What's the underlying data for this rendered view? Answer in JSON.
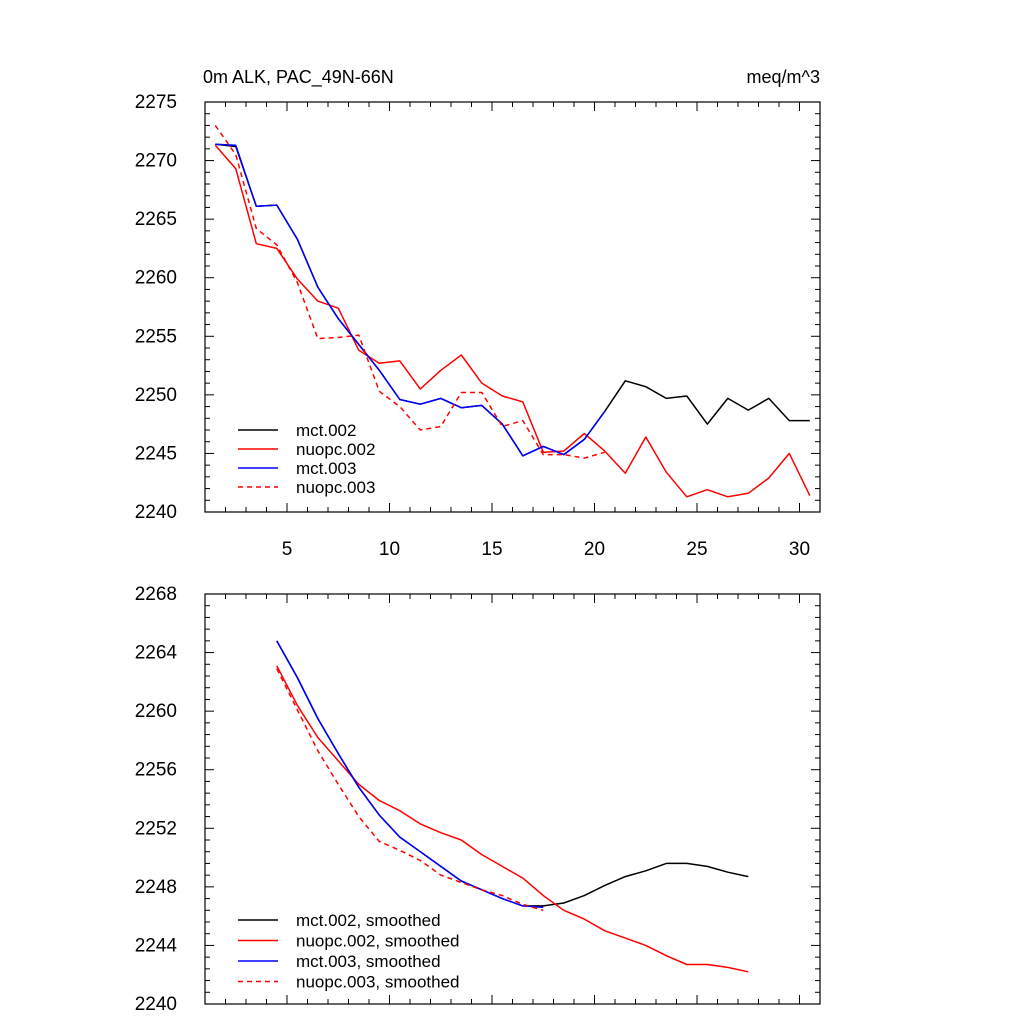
{
  "colors": {
    "black": "#000000",
    "red": "#ff0000",
    "blue": "#0000ff",
    "background": "#ffffff"
  },
  "chart_data": [
    {
      "type": "line",
      "title": "0m ALK, PAC_49N-66N",
      "units": "meq/m^3",
      "xlim": [
        1,
        31
      ],
      "ylim": [
        2240,
        2275
      ],
      "xticks": [
        5,
        10,
        15,
        20,
        25,
        30
      ],
      "xtick_labels": [
        "5",
        "10",
        "15",
        "20",
        "25",
        "30"
      ],
      "yticks": [
        2240,
        2245,
        2250,
        2255,
        2260,
        2265,
        2270,
        2275
      ],
      "ytick_labels": [
        "2240",
        "2245",
        "2250",
        "2255",
        "2260",
        "2265",
        "2270",
        "2275"
      ],
      "legend_position": "bottom-left",
      "series": [
        {
          "name": "mct.002",
          "color": "#000000",
          "dash": "solid",
          "x": [
            1.5,
            2.5,
            3.5,
            4.5,
            5.5,
            6.5,
            7.5,
            8.5,
            9.5,
            10.5,
            11.5,
            12.5,
            13.5,
            14.5,
            15.5,
            16.5,
            17.5,
            18.5,
            19.5,
            20.5,
            21.5,
            22.5,
            23.5,
            24.5,
            25.5,
            26.5,
            27.5,
            28.5,
            29.5,
            30.5
          ],
          "y": [
            2271.4,
            2271.2,
            2266.1,
            2266.2,
            2263.3,
            2259.2,
            2256.5,
            2254.3,
            2252.1,
            2249.6,
            2249.2,
            2249.7,
            2248.9,
            2249.1,
            2247.5,
            2244.8,
            2245.6,
            2244.9,
            2246.2,
            2248.6,
            2251.2,
            2250.7,
            2249.7,
            2249.9,
            2247.5,
            2249.7,
            2248.7,
            2249.7,
            2247.8,
            2247.8
          ]
        },
        {
          "name": "nuopc.002",
          "color": "#ff0000",
          "dash": "solid",
          "x": [
            1.5,
            2.5,
            3.5,
            4.5,
            5.5,
            6.5,
            7.5,
            8.5,
            9.5,
            10.5,
            11.5,
            12.5,
            13.5,
            14.5,
            15.5,
            16.5,
            17.5,
            18.5,
            19.5,
            20.5,
            21.5,
            22.5,
            23.5,
            24.5,
            25.5,
            26.5,
            27.5,
            28.5,
            29.5,
            30.5
          ],
          "y": [
            2271.3,
            2269.3,
            2262.9,
            2262.5,
            2259.9,
            2258.0,
            2257.4,
            2253.8,
            2252.7,
            2252.9,
            2250.5,
            2252.1,
            2253.4,
            2251.0,
            2249.9,
            2249.4,
            2245.1,
            2245.2,
            2246.7,
            2245.2,
            2243.3,
            2246.4,
            2243.4,
            2241.3,
            2241.9,
            2241.3,
            2241.6,
            2242.9,
            2245.0,
            2241.4
          ]
        },
        {
          "name": "mct.003",
          "color": "#0000ff",
          "dash": "solid",
          "x": [
            1.5,
            2.5,
            3.5,
            4.5,
            5.5,
            6.5,
            7.5,
            8.5,
            9.5,
            10.5,
            11.5,
            12.5,
            13.5,
            14.5,
            15.5,
            16.5,
            17.5,
            18.5,
            19.5,
            20.5
          ],
          "y": [
            2271.4,
            2271.3,
            2266.1,
            2266.2,
            2263.3,
            2259.2,
            2256.5,
            2254.3,
            2252.1,
            2249.6,
            2249.2,
            2249.7,
            2248.9,
            2249.1,
            2247.5,
            2244.8,
            2245.6,
            2244.9,
            2246.2,
            2248.6
          ]
        },
        {
          "name": "nuopc.003",
          "color": "#ff0000",
          "dash": "dashed",
          "x": [
            1.5,
            2.5,
            3.5,
            4.5,
            5.5,
            6.5,
            7.5,
            8.5,
            9.5,
            10.5,
            11.5,
            12.5,
            13.5,
            14.5,
            15.5,
            16.5,
            17.5,
            18.5,
            19.5,
            20.5
          ],
          "y": [
            2273.0,
            2270.5,
            2264.2,
            2262.8,
            2259.6,
            2254.8,
            2254.9,
            2255.1,
            2250.3,
            2249.0,
            2247.0,
            2247.3,
            2250.2,
            2250.2,
            2247.3,
            2247.8,
            2244.9,
            2244.9,
            2244.6,
            2245.1
          ]
        }
      ]
    },
    {
      "type": "line",
      "xlim": [
        1,
        31
      ],
      "ylim": [
        2240,
        2268
      ],
      "yticks": [
        2240,
        2244,
        2248,
        2252,
        2256,
        2260,
        2264,
        2268
      ],
      "ytick_labels": [
        "2240",
        "2244",
        "2248",
        "2252",
        "2256",
        "2260",
        "2264",
        "2268"
      ],
      "legend_position": "bottom-left",
      "series": [
        {
          "name": "mct.002, smoothed",
          "color": "#000000",
          "dash": "solid",
          "x": [
            4.5,
            5.5,
            6.5,
            7.5,
            8.5,
            9.5,
            10.5,
            11.5,
            12.5,
            13.5,
            14.5,
            15.5,
            16.5,
            17.5,
            18.5,
            19.5,
            20.5,
            21.5,
            22.5,
            23.5,
            24.5,
            25.5,
            26.5,
            27.5
          ],
          "y": [
            2264.8,
            2262.3,
            2259.5,
            2257.1,
            2254.8,
            2252.9,
            2251.4,
            2250.4,
            2249.4,
            2248.4,
            2247.8,
            2247.2,
            2246.7,
            2246.7,
            2246.9,
            2247.4,
            2248.1,
            2248.7,
            2249.1,
            2249.6,
            2249.6,
            2249.4,
            2249.0,
            2248.7
          ]
        },
        {
          "name": "nuopc.002, smoothed",
          "color": "#ff0000",
          "dash": "solid",
          "x": [
            4.5,
            5.5,
            6.5,
            7.5,
            8.5,
            9.5,
            10.5,
            11.5,
            12.5,
            13.5,
            14.5,
            15.5,
            16.5,
            17.5,
            18.5,
            19.5,
            20.5,
            21.5,
            22.5,
            23.5,
            24.5,
            25.5,
            26.5,
            27.5
          ],
          "y": [
            2263.1,
            2260.4,
            2258.2,
            2256.6,
            2255.0,
            2253.9,
            2253.2,
            2252.3,
            2251.7,
            2251.2,
            2250.2,
            2249.4,
            2248.6,
            2247.4,
            2246.4,
            2245.8,
            2245.0,
            2244.5,
            2244.0,
            2243.3,
            2242.7,
            2242.7,
            2242.5,
            2242.2
          ]
        },
        {
          "name": "mct.003, smoothed",
          "color": "#0000ff",
          "dash": "solid",
          "x": [
            4.5,
            5.5,
            6.5,
            7.5,
            8.5,
            9.5,
            10.5,
            11.5,
            12.5,
            13.5,
            14.5,
            15.5,
            16.5,
            17.5
          ],
          "y": [
            2264.8,
            2262.3,
            2259.5,
            2257.1,
            2254.8,
            2252.9,
            2251.4,
            2250.4,
            2249.4,
            2248.4,
            2247.8,
            2247.2,
            2246.7,
            2246.6
          ]
        },
        {
          "name": "nuopc.003, smoothed",
          "color": "#ff0000",
          "dash": "dashed",
          "x": [
            4.5,
            5.5,
            6.5,
            7.5,
            8.5,
            9.5,
            10.5,
            11.5,
            12.5,
            13.5,
            14.5,
            15.5,
            16.5,
            17.5
          ],
          "y": [
            2262.9,
            2260.1,
            2257.3,
            2255.0,
            2252.8,
            2251.1,
            2250.5,
            2249.8,
            2248.8,
            2248.3,
            2247.8,
            2247.4,
            2246.8,
            2246.4
          ]
        }
      ]
    }
  ]
}
